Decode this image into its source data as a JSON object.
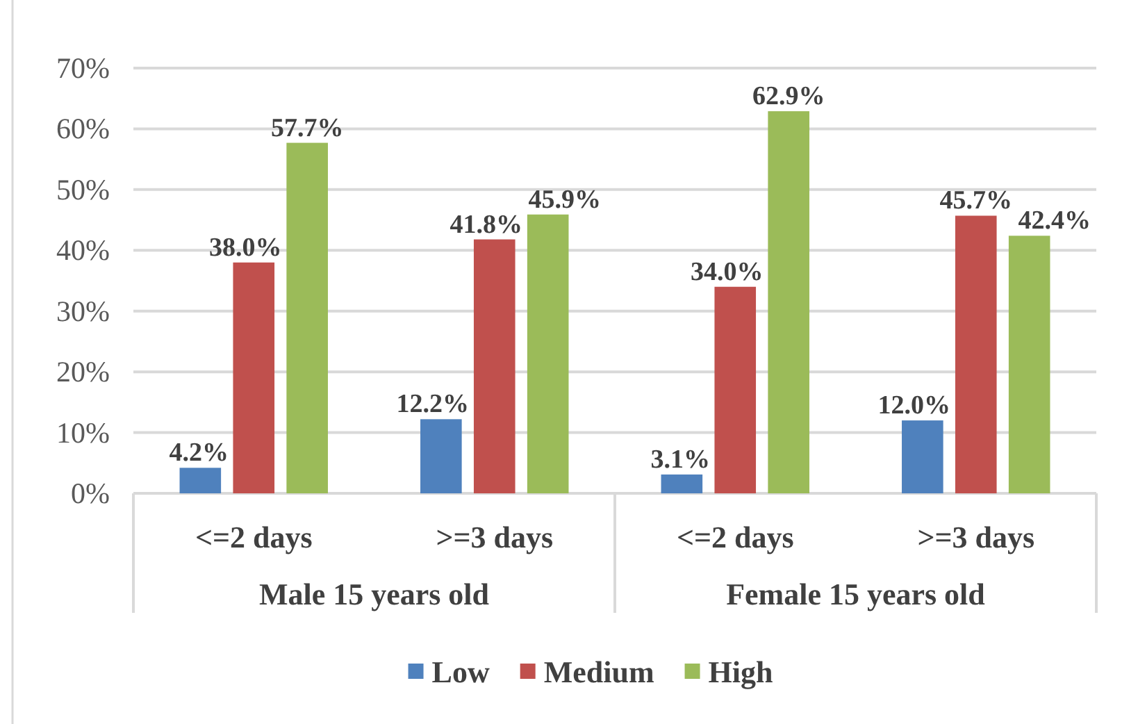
{
  "chart_data": {
    "type": "bar",
    "categories": [
      "<=2 days",
      ">=3 days",
      "<=2 days",
      ">=3 days"
    ],
    "annotations": [
      "Male 15 years old",
      "Female 15 years old"
    ],
    "series": [
      {
        "name": "Low",
        "color": "#4f81bd",
        "values": [
          4.2,
          12.2,
          3.1,
          12.0
        ],
        "value_labels": [
          "4.2%",
          "12.2%",
          "3.1%",
          "12.0%"
        ]
      },
      {
        "name": "Medium",
        "color": "#c0504d",
        "values": [
          38.0,
          41.8,
          34.0,
          45.7
        ],
        "value_labels": [
          "38.0%",
          "41.8%",
          "34.0%",
          "45.7%"
        ]
      },
      {
        "name": "High",
        "color": "#9bbb59",
        "values": [
          57.7,
          45.9,
          62.9,
          42.4
        ],
        "value_labels": [
          "57.7%",
          "45.9%",
          "62.9%",
          "42.4%"
        ]
      }
    ],
    "ylim": [
      0,
      70
    ],
    "yticks": [
      {
        "value": 0,
        "label": "0%"
      },
      {
        "value": 10,
        "label": "10%"
      },
      {
        "value": 20,
        "label": "20%"
      },
      {
        "value": 30,
        "label": "30%"
      },
      {
        "value": 40,
        "label": "40%"
      },
      {
        "value": 50,
        "label": "50%"
      },
      {
        "value": 60,
        "label": "60%"
      },
      {
        "value": 70,
        "label": "70%"
      }
    ],
    "grid": "y",
    "legend": "bottom"
  }
}
